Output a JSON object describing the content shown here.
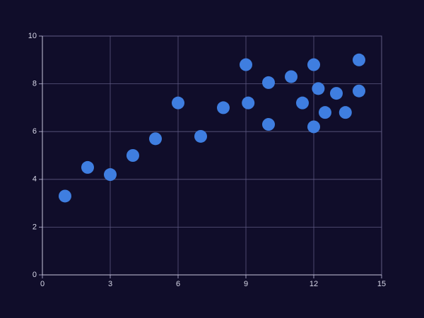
{
  "chart_data": {
    "type": "scatter",
    "series": [
      {
        "color": "#3f7ee0",
        "x": [
          1,
          2,
          3,
          4,
          5,
          6,
          7,
          8,
          9,
          9.1,
          10,
          10,
          11,
          11.5,
          12,
          12,
          12.2,
          12.5,
          13,
          13.4,
          14,
          14
        ],
        "values": [
          3.3,
          4.5,
          4.2,
          5,
          5.7,
          7.2,
          5.8,
          7,
          8.8,
          7.2,
          8.05,
          6.3,
          8.3,
          7.2,
          8.8,
          6.2,
          7.8,
          6.8,
          7.6,
          6.8,
          9,
          7.7
        ]
      }
    ],
    "xlim": [
      0,
      15
    ],
    "xticks": [
      0,
      3,
      6,
      9,
      12,
      15
    ],
    "ylim": [
      0,
      10
    ],
    "yticks": [
      0,
      2,
      4,
      6,
      8,
      10
    ],
    "grid": true
  }
}
